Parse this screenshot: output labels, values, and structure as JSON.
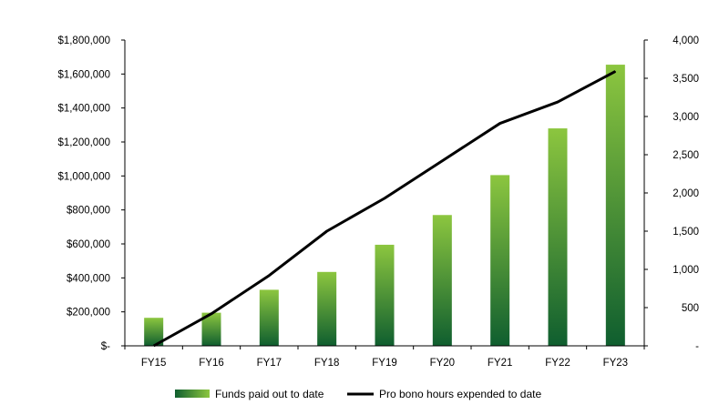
{
  "chart_data": {
    "type": "bar",
    "categories": [
      "FY15",
      "FY16",
      "FY17",
      "FY18",
      "FY19",
      "FY20",
      "FY21",
      "FY22",
      "FY23"
    ],
    "series": [
      {
        "name": "Funds paid out to date",
        "type": "bar",
        "axis": "left",
        "values": [
          165000,
          195000,
          330000,
          435000,
          595000,
          770000,
          1005000,
          1280000,
          1655000
        ]
      },
      {
        "name": "Pro bono hours expended to date",
        "type": "line",
        "axis": "right",
        "values": [
          0,
          420,
          920,
          1500,
          1930,
          2420,
          2910,
          3190,
          3590
        ]
      }
    ],
    "left_axis": {
      "min": 0,
      "max": 1800000,
      "step": 200000,
      "tick_labels": [
        "$-",
        "$200,000",
        "$400,000",
        "$600,000",
        "$800,000",
        "$1,000,000",
        "$1,200,000",
        "$1,400,000",
        "$1,600,000",
        "$1,800,000"
      ]
    },
    "right_axis": {
      "min": 0,
      "max": 4000,
      "step": 500,
      "tick_labels": [
        "-",
        "500",
        "1,000",
        "1,500",
        "2,000",
        "2,500",
        "3,000",
        "3,500",
        "4,000"
      ]
    },
    "title": "",
    "xlabel": "",
    "ylabel": "",
    "grid": false,
    "legend_position": "bottom",
    "colors": {
      "bar_top": "#8cc63f",
      "bar_bottom": "#0f5e2f",
      "line": "#000000",
      "axis": "#000000"
    }
  }
}
